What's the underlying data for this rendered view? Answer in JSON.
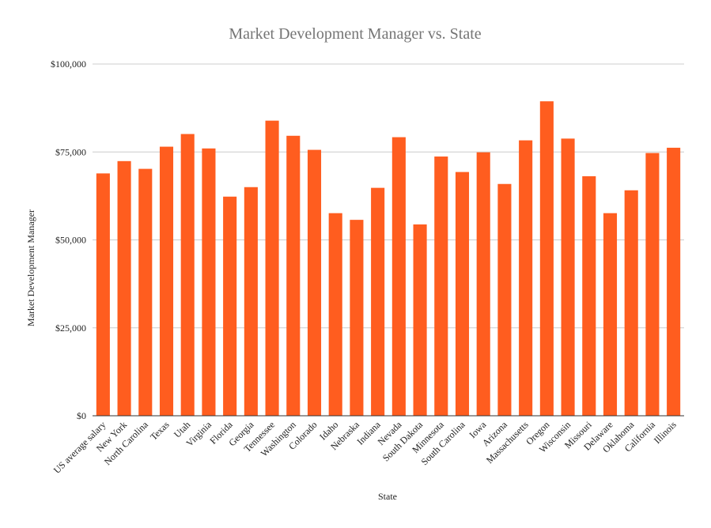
{
  "chart_data": {
    "type": "bar",
    "title": "Market Development Manager vs. State",
    "xlabel": "State",
    "ylabel": "Market Development Manager",
    "ylim": [
      0,
      100000
    ],
    "yticks": [
      0,
      25000,
      50000,
      75000,
      100000
    ],
    "ytick_labels": [
      "$0",
      "$25,000",
      "$50,000",
      "$75,000",
      "$100,000"
    ],
    "grid": true,
    "bar_color": "#ff5d1f",
    "categories": [
      "US average salary",
      "New York",
      "North Carolina",
      "Texas",
      "Utah",
      "Virginia",
      "Florida",
      "Georgia",
      "Tennessee",
      "Washington",
      "Colorado",
      "Idaho",
      "Nebraska",
      "Indiana",
      "Nevada",
      "South Dakota",
      "Minnesota",
      "South Carolina",
      "Iowa",
      "Arizona",
      "Massachusetts",
      "Oregon",
      "Wisconsin",
      "Missouri",
      "Delaware",
      "Oklahoma",
      "California",
      "Illinois"
    ],
    "values": [
      68900,
      72400,
      70200,
      76500,
      80100,
      76000,
      62300,
      65000,
      83900,
      79600,
      75600,
      57600,
      55700,
      64800,
      79200,
      54400,
      73700,
      69300,
      74900,
      65900,
      78300,
      89400,
      78800,
      68100,
      57600,
      64100,
      74700,
      76200
    ]
  }
}
